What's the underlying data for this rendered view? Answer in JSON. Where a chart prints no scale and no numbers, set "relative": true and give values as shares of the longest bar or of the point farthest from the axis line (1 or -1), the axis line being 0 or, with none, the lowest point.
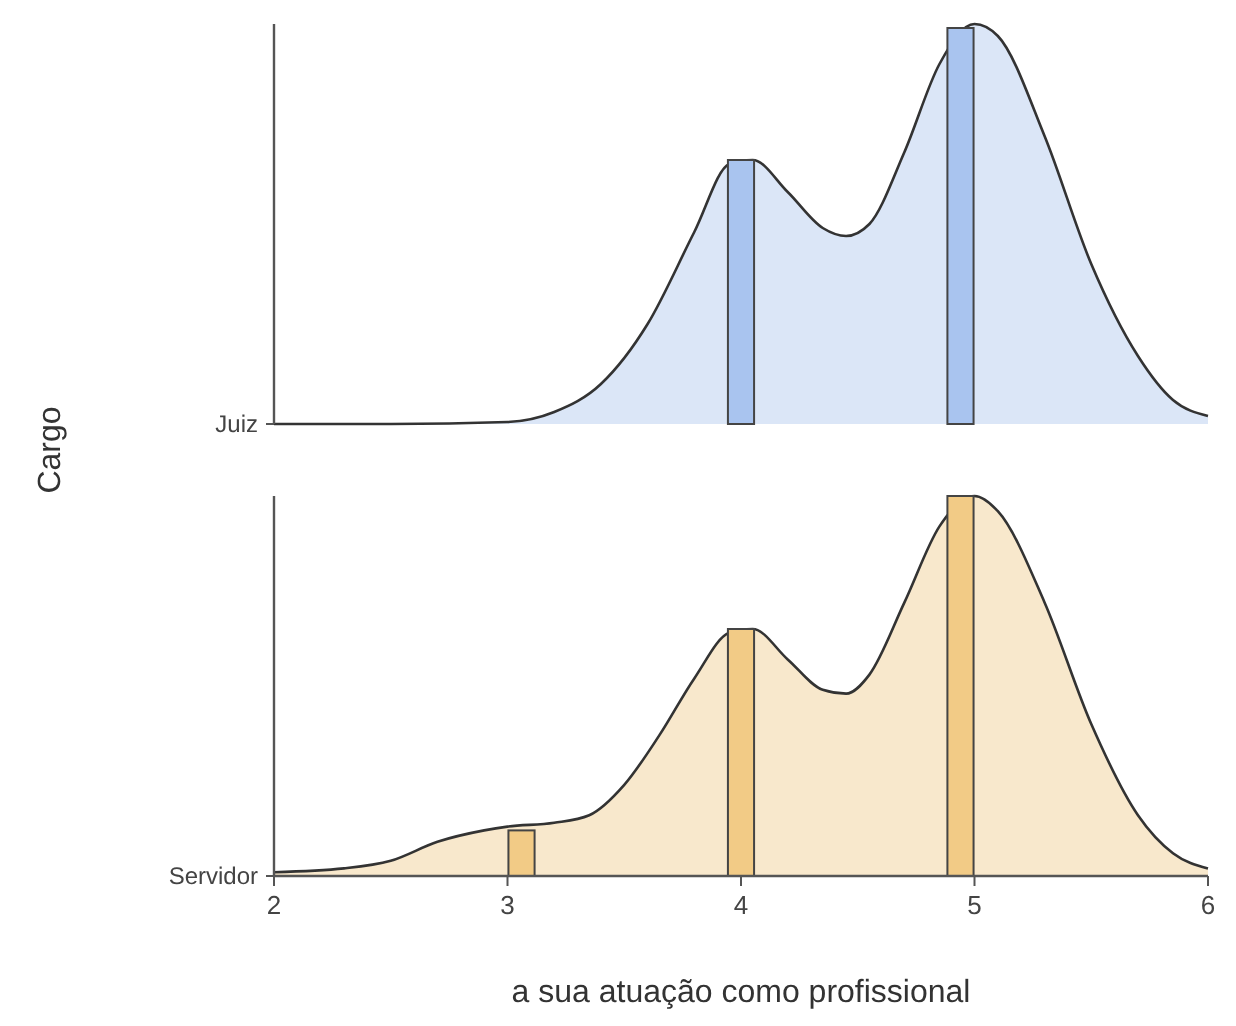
{
  "chart_data": [
    {
      "type": "area",
      "ylabel": "Cargo",
      "relative": true,
      "xlim": [
        2,
        6
      ],
      "tick_labels": false,
      "series": [
        {
          "name": "Juiz",
          "color": "#dbe6f7",
          "x": [
            2,
            2.5,
            3,
            3.2,
            3.4,
            3.6,
            3.8,
            3.95,
            4.05,
            4.2,
            4.35,
            4.45,
            4.55,
            4.7,
            4.85,
            5,
            5.1,
            5.3,
            5.5,
            5.7,
            5.85,
            6
          ],
          "values": [
            0,
            0,
            0.005,
            0.03,
            0.1,
            0.25,
            0.48,
            0.65,
            0.66,
            0.58,
            0.49,
            0.47,
            0.5,
            0.68,
            0.9,
            1,
            0.97,
            0.72,
            0.4,
            0.17,
            0.06,
            0.02
          ]
        },
        {
          "type": "bar",
          "color": "#a9c4ef",
          "x": [
            4,
            4.94
          ],
          "values": [
            0.66,
            0.99
          ]
        }
      ]
    },
    {
      "type": "area",
      "xlabel": "a sua atuação como profissional",
      "relative": true,
      "xlim": [
        2,
        6
      ],
      "xticks": [
        2,
        3,
        4,
        5,
        6
      ],
      "tick_labels": "x",
      "series": [
        {
          "name": "Servidor",
          "color": "#f8e8cc",
          "x": [
            2,
            2.3,
            2.5,
            2.7,
            2.9,
            3,
            3.2,
            3.35,
            3.5,
            3.65,
            3.8,
            3.95,
            4.05,
            4.2,
            4.35,
            4.45,
            4.55,
            4.7,
            4.85,
            5,
            5.1,
            5.3,
            5.5,
            5.7,
            5.85,
            6
          ],
          "values": [
            0.01,
            0.02,
            0.04,
            0.09,
            0.12,
            0.13,
            0.14,
            0.16,
            0.24,
            0.37,
            0.52,
            0.64,
            0.65,
            0.57,
            0.49,
            0.48,
            0.53,
            0.72,
            0.92,
            1,
            0.96,
            0.72,
            0.4,
            0.16,
            0.06,
            0.02
          ]
        },
        {
          "type": "bar",
          "color": "#f2cb86",
          "x": [
            3.06,
            4,
            4.94
          ],
          "values": [
            0.12,
            0.65,
            1
          ]
        }
      ]
    }
  ]
}
